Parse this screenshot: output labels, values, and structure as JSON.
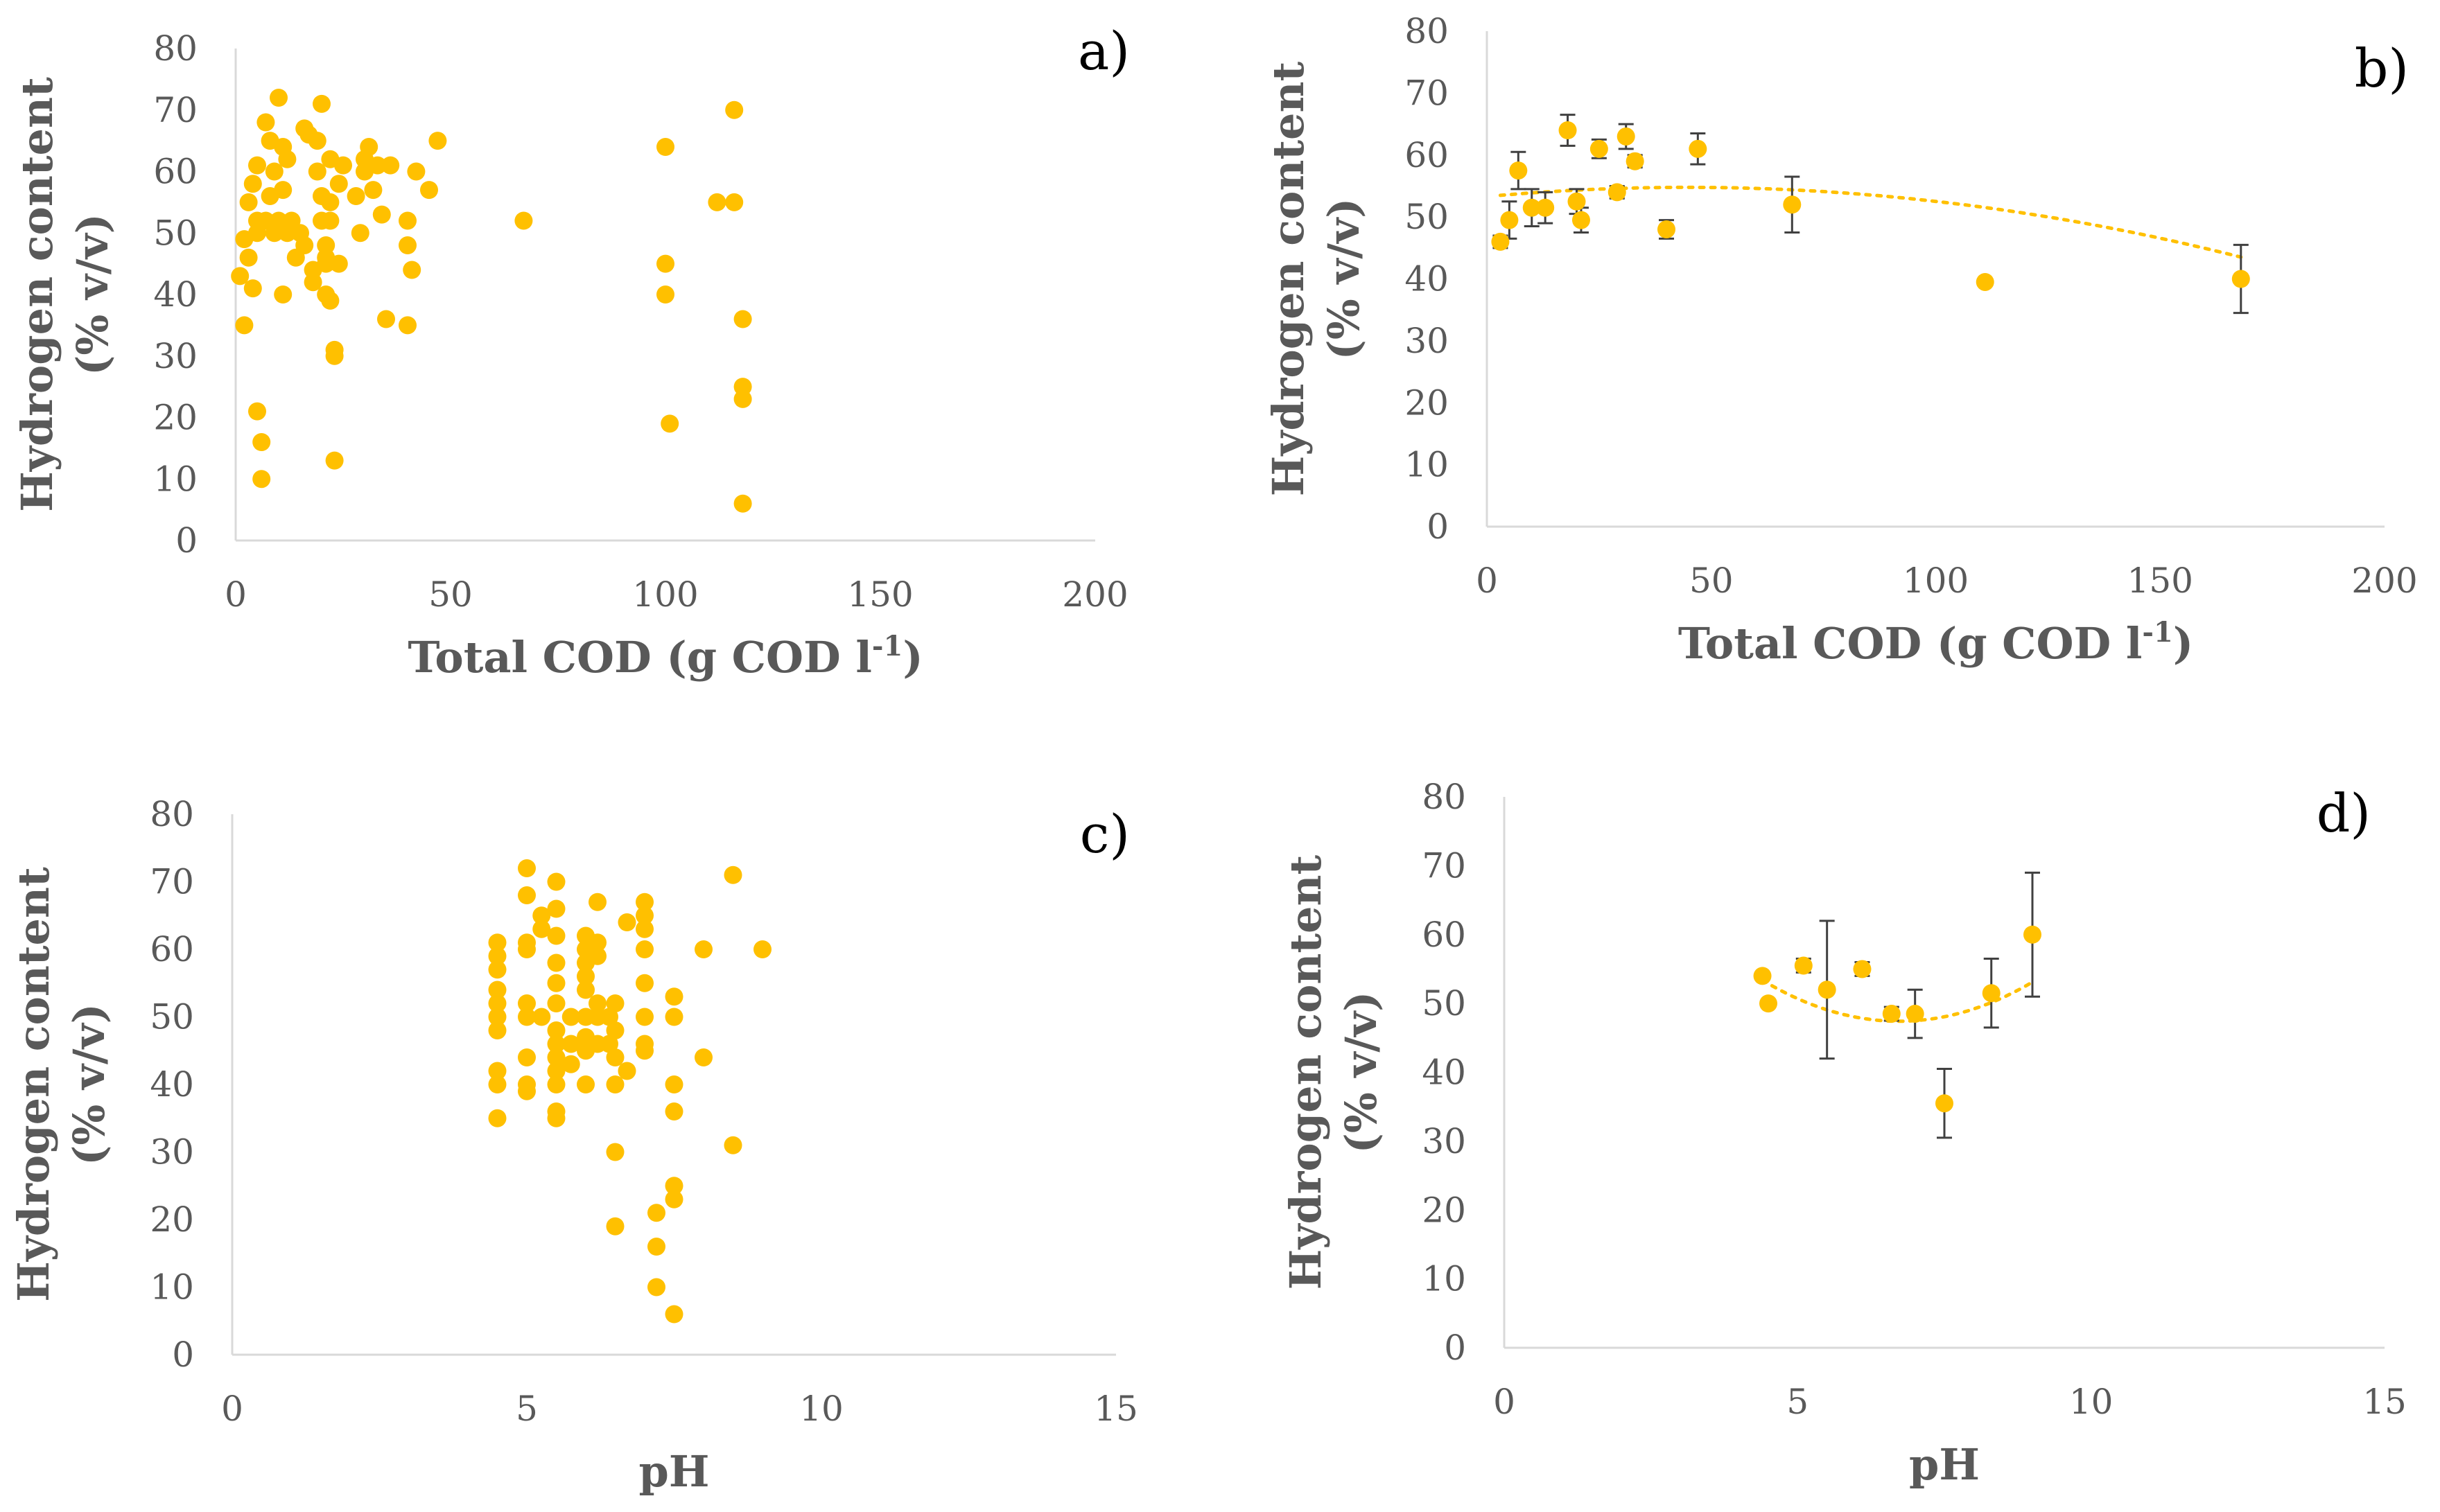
{
  "colors": {
    "marker": "#FFC000",
    "axis": "#D9D9D9",
    "text": "#595959",
    "error_bar": "#404040"
  },
  "chart_data": [
    {
      "panel": "a)",
      "type": "scatter",
      "xlabel": "Total COD (g COD l",
      "xlabel_sup": "-1",
      "xlabel_end": ")",
      "ylabel": "Hydrogen content",
      "ylabel2": "(% v/v)",
      "xlim": [
        0,
        200
      ],
      "ylim": [
        0,
        80
      ],
      "xticks": [
        "0",
        "50",
        "100",
        "150",
        "200"
      ],
      "yticks": [
        "0",
        "10",
        "20",
        "30",
        "40",
        "50",
        "60",
        "70",
        "80"
      ],
      "x": [
        1,
        2,
        2,
        3,
        3,
        4,
        4,
        5,
        5,
        5,
        5,
        6,
        6,
        7,
        7,
        8,
        8,
        9,
        9,
        10,
        10,
        11,
        11,
        11,
        12,
        12,
        13,
        14,
        15,
        16,
        16,
        17,
        18,
        18,
        19,
        19,
        20,
        20,
        20,
        21,
        21,
        21,
        21,
        22,
        22,
        22,
        22,
        23,
        23,
        23,
        24,
        24,
        25,
        28,
        29,
        30,
        30,
        31,
        32,
        33,
        34,
        35,
        36,
        40,
        40,
        40,
        41,
        42,
        45,
        47,
        67,
        100,
        100,
        100,
        101,
        112,
        116,
        116,
        118,
        118,
        118,
        118
      ],
      "y": [
        43,
        35,
        49,
        55,
        46,
        58,
        41,
        61,
        52,
        50,
        21,
        16,
        10,
        68,
        52,
        56,
        65,
        60,
        50,
        72,
        52,
        40,
        57,
        64,
        50,
        62,
        52,
        46,
        50,
        67,
        48,
        66,
        44,
        42,
        65,
        60,
        71,
        56,
        52,
        48,
        46,
        45,
        40,
        62,
        55,
        52,
        39,
        31,
        30,
        13,
        58,
        45,
        61,
        56,
        50,
        60,
        62,
        64,
        57,
        61,
        53,
        36,
        61,
        52,
        48,
        35,
        44,
        60,
        57,
        65,
        52,
        64,
        45,
        40,
        19,
        55,
        70,
        55,
        36,
        25,
        23,
        6
      ]
    },
    {
      "panel": "b)",
      "type": "scatter",
      "xlabel": "Total COD (g COD l",
      "xlabel_sup": "-1",
      "xlabel_end": ")",
      "ylabel": "Hydrogen content",
      "ylabel2": "(% v/v)",
      "xlim": [
        0,
        200
      ],
      "ylim": [
        0,
        80
      ],
      "xticks": [
        "0",
        "50",
        "100",
        "150",
        "200"
      ],
      "yticks": [
        "0",
        "10",
        "20",
        "30",
        "40",
        "50",
        "60",
        "70",
        "80"
      ],
      "x": [
        3,
        5,
        7,
        10,
        13,
        18,
        20,
        21,
        25,
        29,
        31,
        33,
        40,
        47,
        68,
        111,
        168
      ],
      "y": [
        46,
        49.5,
        57.5,
        51.5,
        51.5,
        64,
        52.5,
        49.5,
        61,
        54,
        63,
        59,
        48,
        61,
        52,
        39.5,
        40
      ],
      "err": [
        1,
        3,
        3,
        3,
        2.5,
        2.5,
        2,
        2,
        1.5,
        1,
        2,
        1,
        1.5,
        2.5,
        4.5,
        0.5,
        5.5
      ],
      "trend": {
        "type": "poly2",
        "a": -0.000741,
        "b": 0.0663,
        "c": 53.3,
        "x_range": [
          3,
          168
        ]
      }
    },
    {
      "panel": "c)",
      "type": "scatter",
      "xlabel": "pH",
      "xlabel_sup": "",
      "xlabel_end": "",
      "ylabel": "Hydrogen content",
      "ylabel2": "(% v/v)",
      "xlim": [
        0,
        15
      ],
      "ylim": [
        0,
        80
      ],
      "xticks": [
        "0",
        "5",
        "10",
        "15"
      ],
      "yticks": [
        "0",
        "10",
        "20",
        "30",
        "40",
        "50",
        "60",
        "70",
        "80"
      ],
      "x": [
        4.5,
        4.5,
        4.5,
        4.5,
        4.5,
        4.5,
        4.5,
        4.5,
        4.5,
        4.5,
        5,
        5,
        5,
        5,
        5,
        5,
        5,
        5,
        5,
        5.25,
        5.25,
        5.25,
        5.5,
        5.5,
        5.5,
        5.5,
        5.5,
        5.5,
        5.5,
        5.5,
        5.5,
        5.5,
        5.5,
        5.5,
        5.5,
        5.75,
        5.75,
        5.75,
        6,
        6,
        6,
        6,
        6,
        6,
        6,
        6,
        6,
        6.2,
        6.2,
        6.2,
        6.2,
        6.2,
        6.2,
        6.4,
        6.4,
        6.5,
        6.5,
        6.5,
        6.5,
        6.5,
        6.5,
        6.7,
        6.7,
        7,
        7,
        7,
        7,
        7,
        7,
        7,
        7,
        7.2,
        7.2,
        7.2,
        7.5,
        7.5,
        7.5,
        7.5,
        7.5,
        7.5,
        7.5,
        8,
        8,
        8.5,
        8.5,
        9
      ],
      "y": [
        54,
        61,
        57,
        52,
        50,
        48,
        42,
        40,
        35,
        59,
        72,
        68,
        60,
        61,
        52,
        50,
        44,
        40,
        39,
        65,
        63,
        50,
        70,
        66,
        62,
        58,
        55,
        52,
        48,
        46,
        44,
        42,
        40,
        36,
        35,
        50,
        46,
        43,
        62,
        60,
        58,
        54,
        50,
        47,
        45,
        40,
        56,
        67,
        61,
        59,
        52,
        50,
        46,
        50,
        46,
        52,
        48,
        44,
        40,
        30,
        19,
        64,
        42,
        67,
        65,
        63,
        60,
        55,
        50,
        46,
        45,
        21,
        16,
        10,
        53,
        50,
        40,
        36,
        25,
        23,
        6,
        60,
        44,
        71,
        31,
        60
      ]
    },
    {
      "panel": "d)",
      "type": "scatter",
      "xlabel": "pH",
      "xlabel_sup": "",
      "xlabel_end": "",
      "ylabel": "Hydrogen content",
      "ylabel2": "(% v/v)",
      "xlim": [
        0,
        15
      ],
      "ylim": [
        0,
        80
      ],
      "xticks": [
        "0",
        "5",
        "10",
        "15"
      ],
      "yticks": [
        "0",
        "10",
        "20",
        "30",
        "40",
        "50",
        "60",
        "70",
        "80"
      ],
      "x": [
        4.4,
        4.5,
        5.1,
        5.5,
        6.1,
        6.6,
        7.0,
        7.5,
        8.3,
        9.0
      ],
      "y": [
        54,
        50,
        55.5,
        52,
        55,
        48.5,
        48.5,
        35.5,
        51.5,
        60
      ],
      "err": [
        0.5,
        0.5,
        1,
        10,
        1,
        1,
        3.5,
        5,
        5,
        9
      ],
      "trend": {
        "type": "poly2",
        "a": 1.1,
        "b": -14.8,
        "c": 97.2,
        "x_range": [
          4.4,
          9.0
        ]
      }
    }
  ]
}
